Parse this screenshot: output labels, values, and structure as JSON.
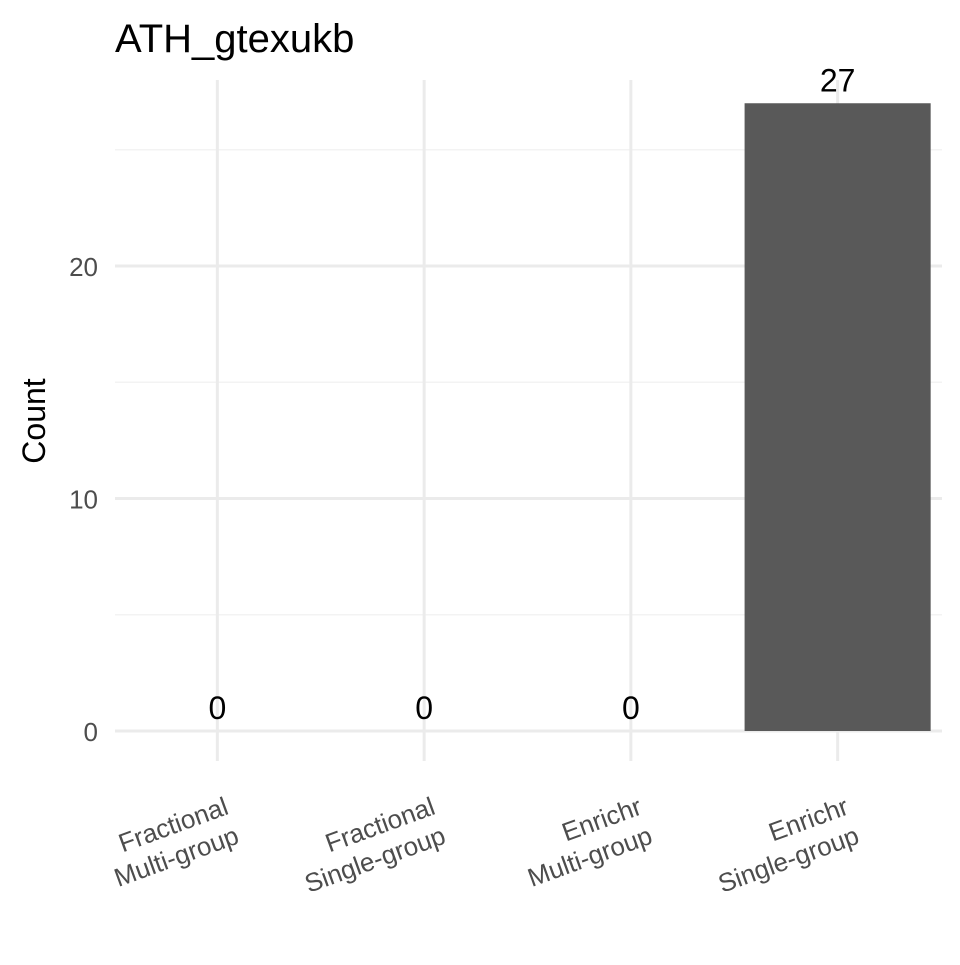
{
  "chart_data": {
    "type": "bar",
    "title": "ATH_gtexukb",
    "xlabel": "",
    "ylabel": "Count",
    "categories": [
      [
        "Fractional",
        "Multi-group"
      ],
      [
        "Fractional",
        "Single-group"
      ],
      [
        "Enrichr",
        "Multi-group"
      ],
      [
        "Enrichr",
        "Single-group"
      ]
    ],
    "values": [
      0,
      0,
      0,
      27
    ],
    "data_labels": [
      "0",
      "0",
      "0",
      "27"
    ],
    "ylim": [
      0,
      28
    ],
    "y_ticks": [
      0,
      10,
      20
    ],
    "y_tick_labels": [
      "0",
      "10",
      "20"
    ],
    "y_minor_ticks": [
      5,
      15,
      25
    ],
    "grid": true,
    "legend": "none",
    "colors": {
      "bar": "#595959",
      "grid_major": "#ebebeb",
      "grid_minor": "#f3f3f3",
      "tick_text": "#4d4d4d",
      "title_text": "#000000",
      "label_text": "#000000"
    }
  }
}
